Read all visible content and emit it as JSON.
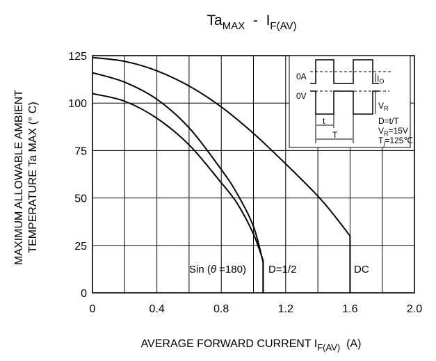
{
  "chart_data": {
    "type": "line",
    "title": {
      "main": "Ta",
      "main_sub": "MAX",
      "sep": "  -  ",
      "var": "I",
      "var_sub": "F(AV)"
    },
    "xlabel": {
      "text": "AVERAGE FORWARD CURRENT I",
      "sub": "F(AV)",
      "unit": "  (A)"
    },
    "ylabel": {
      "line1": "MAXIMUM ALLOWABLE AMBIENT",
      "line2": "TEMPERATURE Ta MAX  (° C)"
    },
    "xlim": [
      0,
      2.0
    ],
    "ylim": [
      0,
      125
    ],
    "x_ticks": [
      "0",
      "0.4",
      "0.8",
      "1.2",
      "1.6",
      "2.0"
    ],
    "y_ticks": [
      "0",
      "25",
      "50",
      "75",
      "100",
      "125"
    ],
    "grid": true,
    "series": [
      {
        "name": "Sin (θ =180)",
        "label_text": "Sin (",
        "x": [
          0,
          0.2,
          0.4,
          0.6,
          0.8,
          0.9,
          1.0,
          1.06,
          1.06
        ],
        "y": [
          105,
          101,
          92,
          78,
          58,
          47,
          31,
          17,
          0
        ]
      },
      {
        "name": "D=1/2",
        "label_text": "D=1/2",
        "x": [
          0,
          0.2,
          0.4,
          0.6,
          0.8,
          0.9,
          1.0,
          1.06,
          1.06
        ],
        "y": [
          116,
          111,
          102,
          87,
          65,
          52,
          35,
          16,
          0
        ]
      },
      {
        "name": "DC",
        "label_text": "DC",
        "x": [
          0,
          0.2,
          0.4,
          0.6,
          0.8,
          1.0,
          1.2,
          1.4,
          1.5,
          1.6,
          1.6
        ],
        "y": [
          124,
          122,
          117,
          109,
          98,
          84,
          68,
          51,
          41,
          30,
          0
        ]
      }
    ],
    "sin_label_parts": {
      "theta": "θ",
      "rest": " =180)"
    },
    "inset": {
      "oa": "0A",
      "ov": "0V",
      "io": "I",
      "io_sub": "O",
      "vr": "V",
      "vr_sub": "R",
      "t": "t",
      "T": "T",
      "d_line": "D=t/T",
      "vr_line": "=15V",
      "vr_line_prefix": "V",
      "vr_line_sub": "R",
      "tj_line": "=125℃",
      "tj_line_prefix": "T",
      "tj_line_sub": "j"
    }
  }
}
